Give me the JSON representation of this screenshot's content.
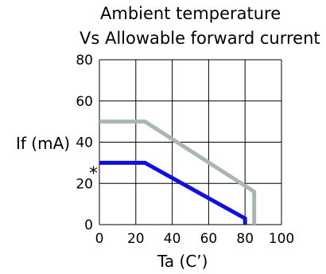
{
  "chart_data": {
    "type": "line",
    "title_lines": [
      "Ambient temperature",
      "Vs Allowable forward current"
    ],
    "xlabel": "Ta (C’)",
    "ylabel": "If (mA)",
    "xlim": [
      0,
      100
    ],
    "ylim": [
      0,
      80
    ],
    "xticks": [
      "0",
      "20",
      "40",
      "60",
      "80",
      "100"
    ],
    "yticks": [
      "0",
      "20",
      "40",
      "60",
      "80"
    ],
    "grid": true,
    "annotation": "*",
    "series": [
      {
        "color": "#a9b6b3",
        "x": [
          0,
          25,
          85,
          85
        ],
        "y": [
          50,
          50,
          16,
          0
        ]
      },
      {
        "color": "#1010dd",
        "x": [
          0,
          25,
          80,
          80
        ],
        "y": [
          30,
          30,
          3,
          0
        ]
      }
    ]
  }
}
